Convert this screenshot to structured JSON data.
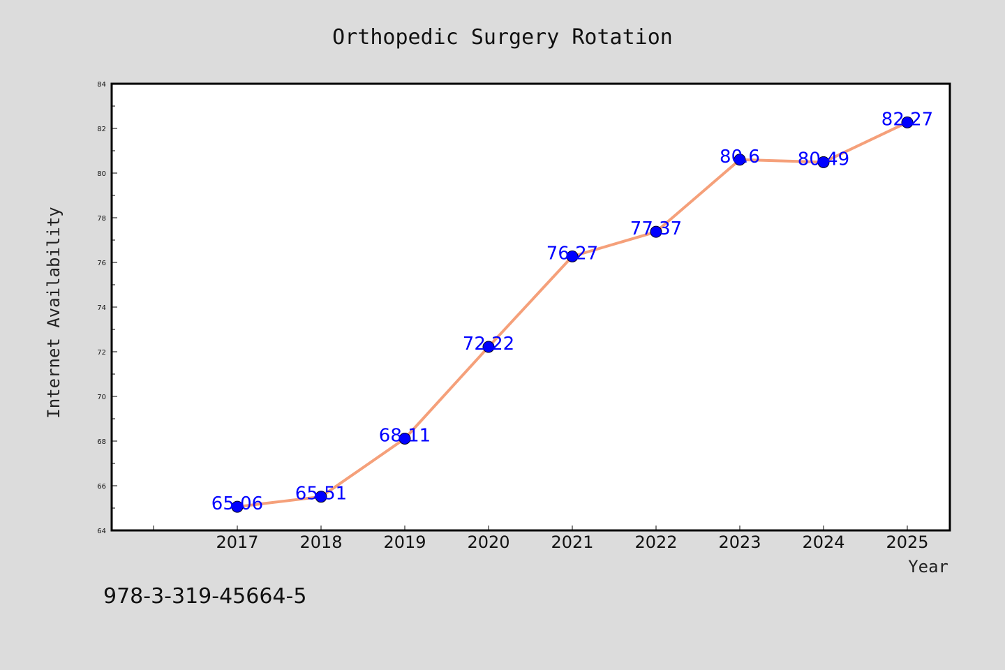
{
  "chart_data": {
    "type": "line",
    "title": "Orthopedic Surgery Rotation",
    "xlabel": "Year",
    "ylabel": "Internet Availability",
    "categories": [
      "2017",
      "2018",
      "2019",
      "2020",
      "2021",
      "2022",
      "2023",
      "2024",
      "2025"
    ],
    "series": [
      {
        "values": [
          65.06,
          65.51,
          68.11,
          72.22,
          76.27,
          77.37,
          80.6,
          80.49,
          82.27
        ],
        "labels": [
          "65.06",
          "65.51",
          "68.11",
          "72.22",
          "76.27",
          "77.37",
          "80.6",
          "80.49",
          "82.27"
        ],
        "line_color": "#f5a07a",
        "marker_color": "#0000ff",
        "label_color": "#0000ff"
      }
    ],
    "ylim": [
      64,
      84
    ],
    "y_ticks": [
      "64",
      "66",
      "68",
      "70",
      "72",
      "74",
      "76",
      "78",
      "80",
      "82",
      "84"
    ],
    "grid": false,
    "legend": "none"
  },
  "footer": {
    "code": "978-3-319-45664-5"
  },
  "colors": {
    "background": "#dcdcdc",
    "plot_background": "#ffffff",
    "axis": "#000000"
  }
}
